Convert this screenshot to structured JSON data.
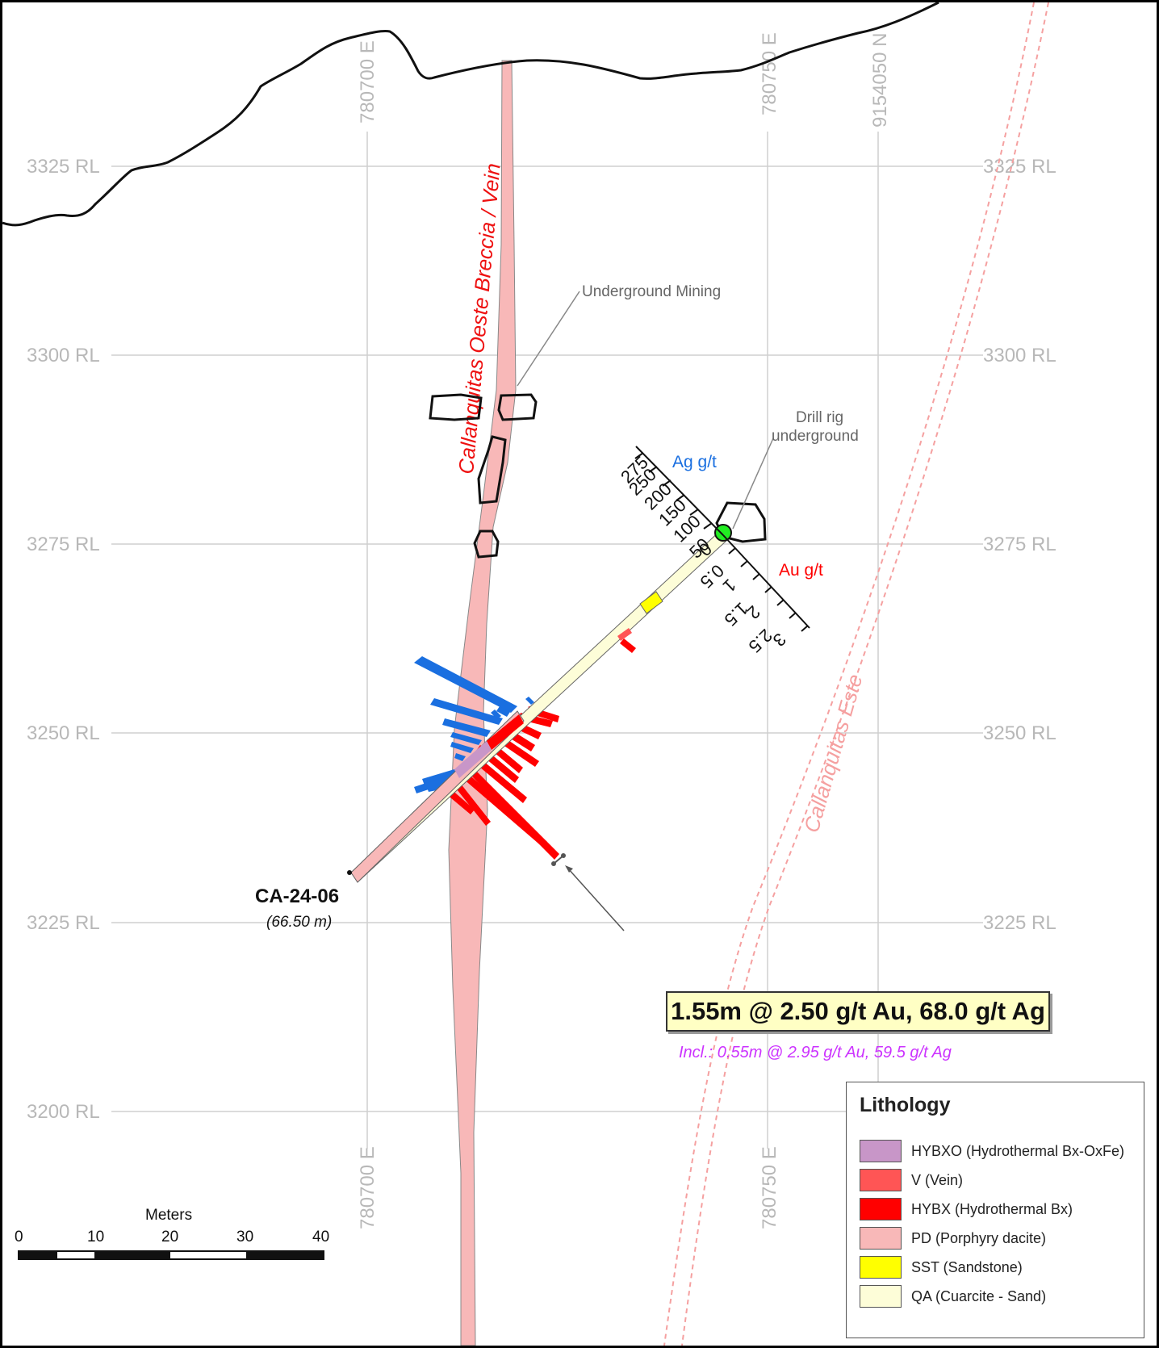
{
  "map": {
    "rl_labels": [
      "3325 RL",
      "3300 RL",
      "3275 RL",
      "3250 RL",
      "3225 RL",
      "3200 RL"
    ],
    "easting_top": [
      "780700 E",
      "780750 E"
    ],
    "northing_top": "9154050 N",
    "easting_bottom": [
      "780700 E",
      "780750 E"
    ]
  },
  "annotations": {
    "vein_label": "Callanquitas Oeste Breccia / Vein",
    "este_label": "Callanquitas Este",
    "underground_mining": "Underground Mining",
    "drill_rig_line1": "Drill rig",
    "drill_rig_line2": "underground",
    "ag_label": "Ag g/t",
    "au_label": "Au g/t",
    "ag_scale": [
      "50",
      "100",
      "150",
      "200",
      "250",
      "275"
    ],
    "au_scale": [
      "0",
      "0.5",
      "1",
      "1.5",
      "2",
      "2.5",
      "3"
    ]
  },
  "drillhole": {
    "name": "CA-24-06",
    "depth": "(66.50 m)"
  },
  "intercept": {
    "headline": "1.55m @ 2.50 g/t Au, 68.0 g/t Ag",
    "included": "Incl.: 0.55m @ 2.95 g/t Au, 59.5 g/t Ag"
  },
  "legend": {
    "title": "Lithology",
    "items": [
      {
        "label": "HYBXO (Hydrothermal Bx-OxFe)",
        "color": "#c896c8"
      },
      {
        "label": "V (Vein)",
        "color": "#ff5555"
      },
      {
        "label": "HYBX (Hydrothermal Bx)",
        "color": "#ff0000"
      },
      {
        "label": "PD (Porphyry dacite)",
        "color": "#f8b8b8"
      },
      {
        "label": "SST (Sandstone)",
        "color": "#ffff00"
      },
      {
        "label": "QA (Cuarcite -  Sand)",
        "color": "#fdfdd8"
      }
    ]
  },
  "scalebar": {
    "title": "Meters",
    "ticks": [
      "0",
      "10",
      "20",
      "30",
      "40"
    ]
  }
}
